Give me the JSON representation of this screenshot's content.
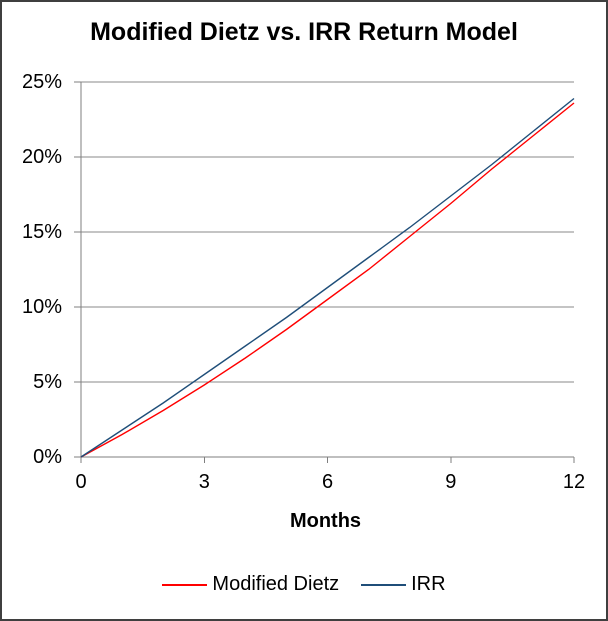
{
  "chart_data": {
    "type": "line",
    "title": "Modified Dietz vs. IRR Return Model",
    "xlabel": "Months",
    "x": [
      0,
      1,
      2,
      3,
      4,
      5,
      6,
      7,
      8,
      9,
      10,
      11,
      12
    ],
    "series": [
      {
        "name": "Modified Dietz",
        "color": "#FF0000",
        "values": [
          0.0,
          1.5,
          3.1,
          4.8,
          6.6,
          8.5,
          10.5,
          12.5,
          14.7,
          16.9,
          19.2,
          21.4,
          23.6
        ]
      },
      {
        "name": "IRR",
        "color": "#1F4E79",
        "values": [
          0.0,
          1.8,
          3.6,
          5.5,
          7.4,
          9.3,
          11.3,
          13.3,
          15.3,
          17.4,
          19.5,
          21.7,
          23.9
        ]
      }
    ],
    "xlim": [
      0,
      12
    ],
    "ylim": [
      0,
      25
    ],
    "x_ticks": [
      0,
      3,
      6,
      9,
      12
    ],
    "y_ticks": [
      0,
      5,
      10,
      15,
      20,
      25
    ],
    "y_tick_suffix": "%",
    "grid": "horizontal-only",
    "legend_position": "bottom"
  },
  "colors": {
    "background": "#FFFFFF",
    "frame_border": "#3F3F3F",
    "gridline": "#898989",
    "axis": "#7F7F7F",
    "text": "#000000"
  }
}
